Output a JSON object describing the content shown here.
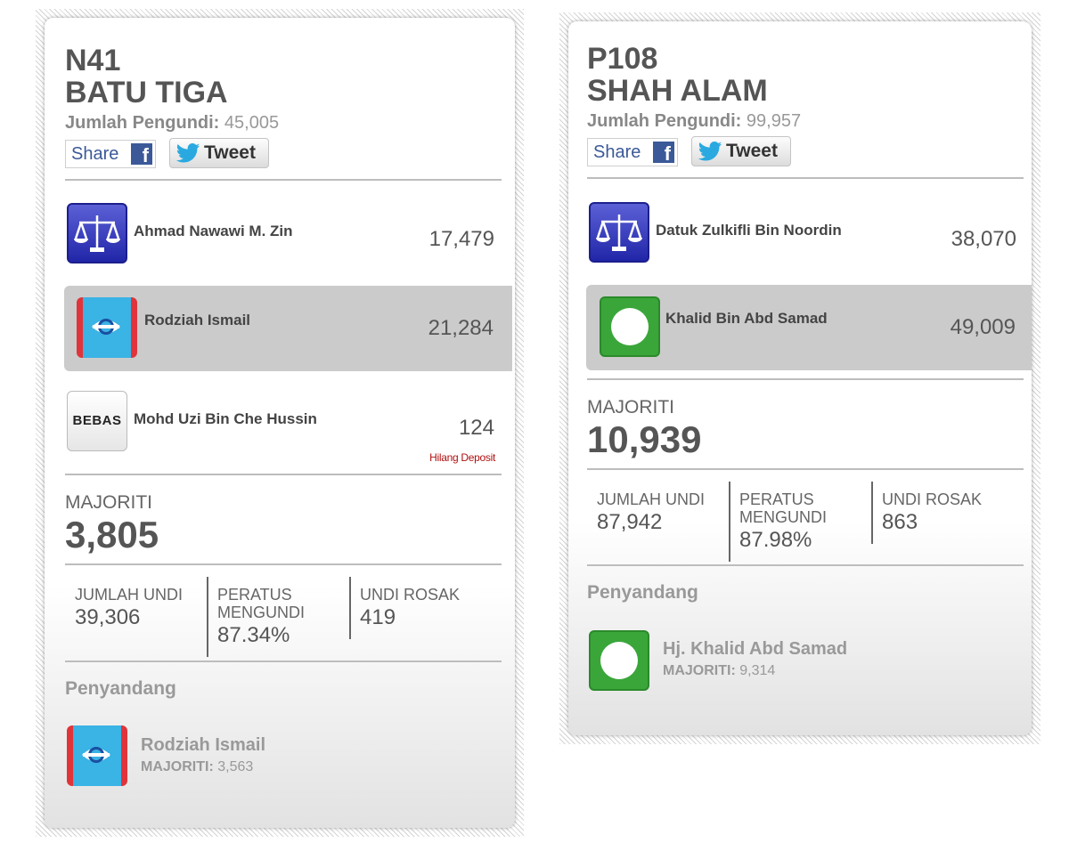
{
  "left": {
    "code": "N41",
    "name": "BATU TIGA",
    "voters_label": "Jumlah Pengundi:",
    "voters_value": "45,005",
    "share_label": "Share",
    "tweet_label": "Tweet",
    "candidates": [
      {
        "party": "BN",
        "name": "Ahmad Nawawi M. Zin",
        "votes": "17,479"
      },
      {
        "party": "PKR",
        "name": "Rodziah Ismail",
        "votes": "21,284"
      },
      {
        "party": "BEBAS",
        "logo_text": "BEBAS",
        "name": "Mohd Uzi Bin Che Hussin",
        "votes": "124",
        "note": "Hilang Deposit"
      }
    ],
    "majority_label": "MAJORITI",
    "majority_value": "3,805",
    "stats": [
      {
        "label": "JUMLAH UNDI",
        "value": "39,306"
      },
      {
        "label": "PERATUS MENGUNDI",
        "value": "87.34%"
      },
      {
        "label": "UNDI ROSAK",
        "value": "419"
      }
    ],
    "incumbent_label": "Penyandang",
    "incumbent": {
      "party": "PKR",
      "name": "Rodziah Ismail",
      "majority_label": "MAJORITI:",
      "majority_value": "3,563"
    }
  },
  "right": {
    "code": "P108",
    "name": "SHAH ALAM",
    "voters_label": "Jumlah Pengundi:",
    "voters_value": "99,957",
    "share_label": "Share",
    "tweet_label": "Tweet",
    "candidates": [
      {
        "party": "BN",
        "name": "Datuk Zulkifli Bin Noordin",
        "votes": "38,070"
      },
      {
        "party": "PAS",
        "name": "Khalid Bin Abd Samad",
        "votes": "49,009"
      }
    ],
    "majority_label": "MAJORITI",
    "majority_value": "10,939",
    "stats": [
      {
        "label": "JUMLAH UNDI",
        "value": "87,942"
      },
      {
        "label": "PERATUS MENGUNDI",
        "value": "87.98%"
      },
      {
        "label": "UNDI ROSAK",
        "value": "863"
      }
    ],
    "incumbent_label": "Penyandang",
    "incumbent": {
      "party": "PAS",
      "name": "Hj. Khalid Abd Samad",
      "majority_label": "MAJORITI:",
      "majority_value": "9,314"
    }
  },
  "colors": {
    "bn_blue": "#2a2fb0",
    "pkr_blue": "#3ab3e5",
    "pkr_red": "#e0343a",
    "pas_green": "#3aa63a",
    "lost_deposit_red": "#b01010",
    "winner_highlight": "#cbcbcb"
  },
  "icons": [
    "facebook-icon",
    "twitter-bird-icon",
    "bn-scales-logo",
    "pkr-eye-logo",
    "pas-moon-logo",
    "bebas-logo"
  ]
}
